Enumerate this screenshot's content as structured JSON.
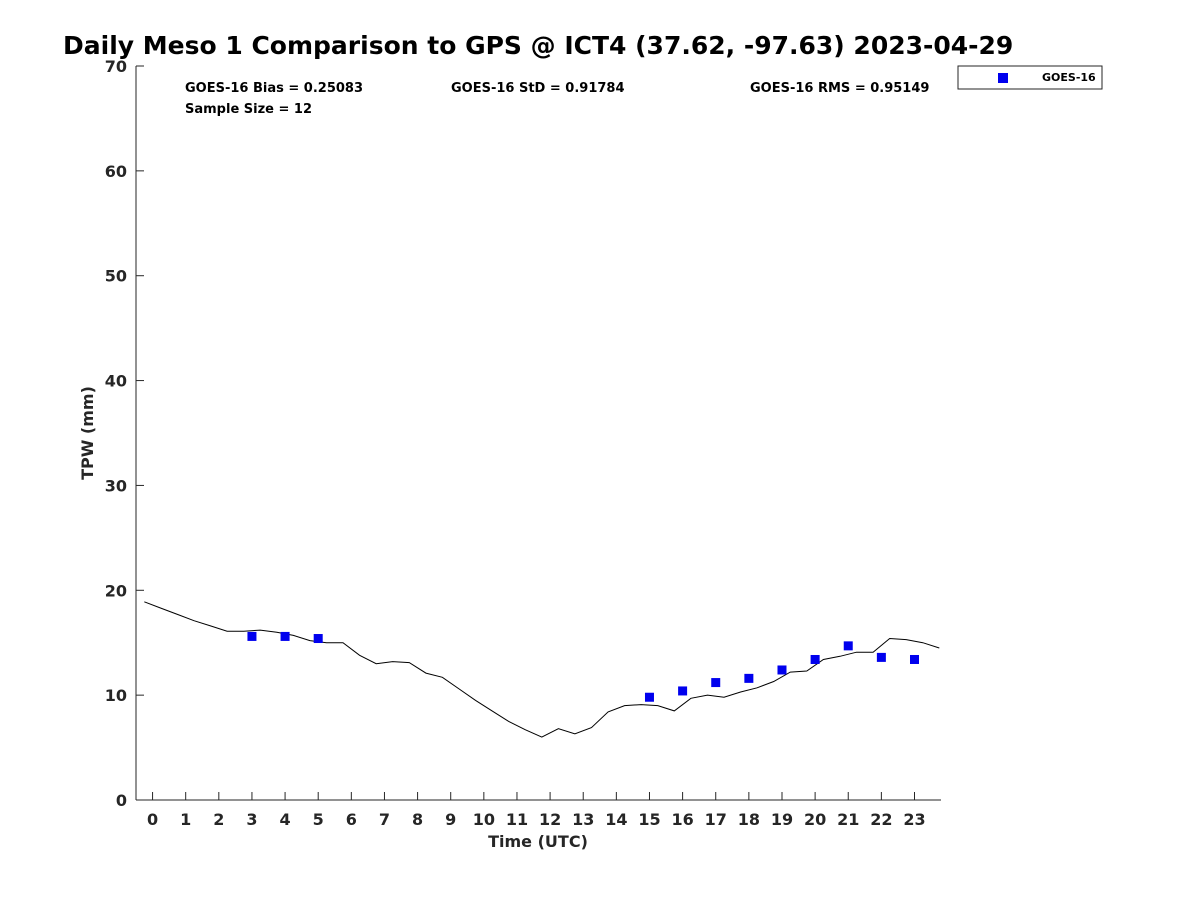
{
  "chart_data": {
    "type": "scatter",
    "title": "Daily Meso 1 Comparison to GPS @ ICT4 (37.62, -97.63) 2023-04-29",
    "xlabel": "Time (UTC)",
    "ylabel": "TPW (mm)",
    "xlim": [
      -0.5,
      23.8
    ],
    "ylim": [
      0,
      70
    ],
    "x_ticks": [
      0,
      1,
      2,
      3,
      4,
      5,
      6,
      7,
      8,
      9,
      10,
      11,
      12,
      13,
      14,
      15,
      16,
      17,
      18,
      19,
      20,
      21,
      22,
      23
    ],
    "y_ticks": [
      0,
      10,
      20,
      30,
      40,
      50,
      60,
      70
    ],
    "grid": false,
    "legend_position": "outside-top-right",
    "stats": {
      "bias": "GOES-16 Bias = 0.25083",
      "std": "GOES-16 StD = 0.91784",
      "rms": "GOES-16 RMS = 0.95149",
      "sample": "Sample Size = 12"
    },
    "series": [
      {
        "name": "GOES-16",
        "marker": "square",
        "color": "#0000ee",
        "x": [
          3,
          4,
          5,
          15,
          16,
          17,
          18,
          19,
          20,
          21,
          22,
          23
        ],
        "y": [
          15.6,
          15.6,
          15.4,
          9.8,
          10.4,
          11.2,
          11.6,
          12.4,
          13.4,
          14.7,
          13.6,
          13.4
        ]
      },
      {
        "marker": "line",
        "color": "#000000",
        "x": [
          -0.25,
          0.25,
          0.75,
          1.25,
          1.75,
          2.25,
          2.75,
          3.25,
          3.75,
          4.25,
          4.75,
          5.25,
          5.75,
          6.25,
          6.75,
          7.25,
          7.75,
          8.25,
          8.75,
          9.25,
          9.75,
          10.25,
          10.75,
          11.25,
          11.75,
          12.25,
          12.75,
          13.25,
          13.75,
          14.25,
          14.75,
          15.25,
          15.75,
          16.25,
          16.75,
          17.25,
          17.75,
          18.25,
          18.75,
          19.25,
          19.75,
          20.25,
          20.75,
          21.25,
          21.75,
          22.25,
          22.75,
          23.25,
          23.75
        ],
        "y": [
          18.9,
          18.3,
          17.7,
          17.1,
          16.6,
          16.1,
          16.1,
          16.2,
          16.0,
          15.7,
          15.2,
          15.0,
          15.0,
          13.8,
          13.0,
          13.2,
          13.1,
          12.1,
          11.7,
          10.6,
          9.5,
          8.5,
          7.5,
          6.7,
          6.0,
          6.8,
          6.3,
          6.9,
          8.4,
          9.0,
          9.1,
          9.0,
          8.5,
          9.7,
          10.0,
          9.8,
          10.3,
          10.7,
          11.3,
          12.2,
          12.3,
          13.4,
          13.7,
          14.1,
          14.1,
          15.4,
          15.3,
          15.0,
          14.5
        ]
      }
    ]
  }
}
